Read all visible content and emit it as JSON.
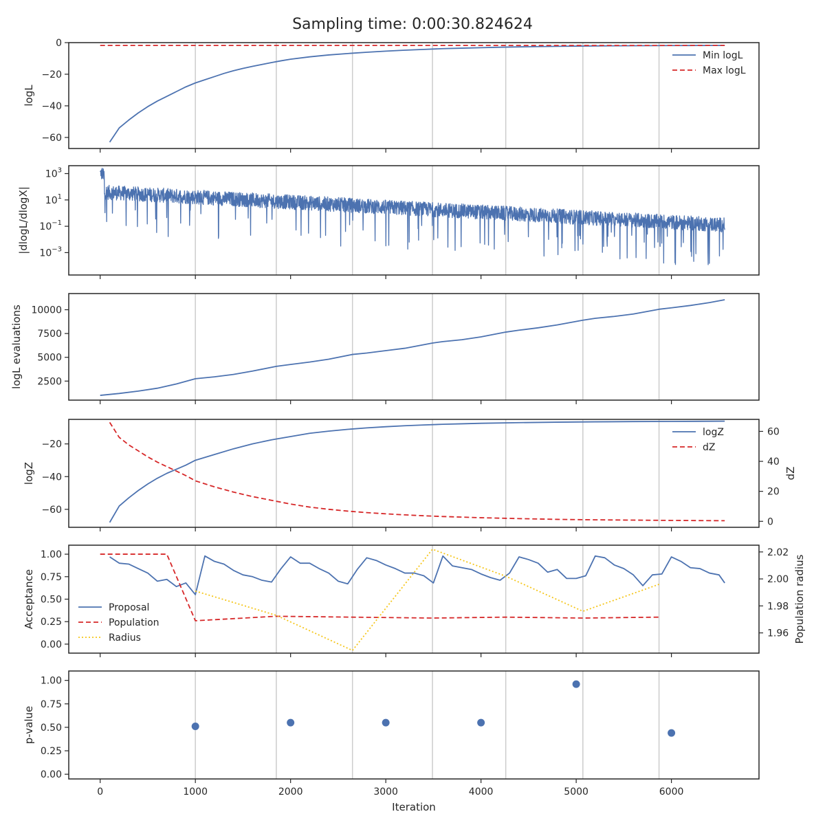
{
  "figure": {
    "title": "Sampling time: 0:00:30.824624",
    "xlabel": "Iteration",
    "vlines": [
      1000,
      1850,
      2650,
      3490,
      4260,
      5070,
      5870
    ],
    "xlim": [
      -330,
      6920
    ],
    "xticks": [
      0,
      1000,
      2000,
      3000,
      4000,
      5000,
      6000
    ]
  },
  "colors": {
    "blue": "#4c72b0",
    "red": "#d62728",
    "gold": "#f5c518",
    "grid": "#cccccc",
    "frame": "#262626"
  },
  "chart_data": [
    {
      "type": "line",
      "panel": "logL",
      "ylabel": "logL",
      "ylim": [
        -67,
        0
      ],
      "yticks": [
        0,
        -20,
        -40,
        -60
      ],
      "legend": "top-right",
      "series": [
        {
          "name": "Min logL",
          "style": "solid",
          "color": "#4c72b0",
          "x": [
            100,
            200,
            300,
            400,
            500,
            600,
            700,
            800,
            900,
            1000,
            1100,
            1200,
            1300,
            1400,
            1500,
            1600,
            1700,
            1800,
            1900,
            2000,
            2200,
            2400,
            2600,
            2800,
            3000,
            3200,
            3400,
            3600,
            3800,
            4000,
            4200,
            4400,
            4600,
            4800,
            5000,
            5200,
            5400,
            5600,
            5800,
            6000,
            6200,
            6400,
            6560
          ],
          "y": [
            -63,
            -54,
            -49,
            -44.5,
            -40.5,
            -37,
            -34,
            -31,
            -28,
            -25.5,
            -23.5,
            -21.5,
            -19.5,
            -17.8,
            -16.3,
            -15.0,
            -13.8,
            -12.6,
            -11.5,
            -10.5,
            -9.0,
            -7.8,
            -6.9,
            -6.1,
            -5.4,
            -4.8,
            -4.3,
            -3.8,
            -3.5,
            -3.2,
            -2.9,
            -2.7,
            -2.5,
            -2.35,
            -2.2,
            -2.1,
            -2.0,
            -1.95,
            -1.9,
            -1.85,
            -1.82,
            -1.8,
            -1.78
          ]
        },
        {
          "name": "Max logL",
          "style": "dashed",
          "color": "#d62728",
          "x": [
            0,
            6560
          ],
          "y": [
            -1.8,
            -1.8
          ]
        }
      ]
    },
    {
      "type": "line",
      "panel": "dlogL",
      "ylabel": "|dlogL/dlogX|",
      "yscale": "log",
      "ylim": [
        -4.7,
        3.6
      ],
      "yticks_exp": [
        3,
        1,
        -1,
        -3
      ],
      "series": [
        {
          "name": "",
          "style": "solid",
          "color": "#4c72b0",
          "x": [
            0,
            6560
          ],
          "trend_log10": [
            1.6,
            -0.9
          ],
          "spread_log10": 0.55,
          "n": 2600
        }
      ]
    },
    {
      "type": "line",
      "panel": "evaluations",
      "ylabel": "logL evaluations",
      "ylim": [
        500,
        11700
      ],
      "yticks": [
        2500,
        5000,
        7500,
        10000
      ],
      "series": [
        {
          "name": "",
          "style": "solid",
          "color": "#4c72b0",
          "x": [
            0,
            200,
            400,
            600,
            800,
            1000,
            1200,
            1400,
            1600,
            1850,
            2000,
            2200,
            2400,
            2650,
            2800,
            3000,
            3200,
            3490,
            3600,
            3800,
            4000,
            4260,
            4400,
            4600,
            4800,
            5070,
            5200,
            5400,
            5600,
            5870,
            6000,
            6200,
            6400,
            6560
          ],
          "y": [
            1000,
            1200,
            1450,
            1750,
            2200,
            2750,
            2950,
            3200,
            3550,
            4050,
            4250,
            4500,
            4800,
            5300,
            5450,
            5700,
            5950,
            6500,
            6650,
            6850,
            7150,
            7650,
            7850,
            8100,
            8400,
            8900,
            9100,
            9300,
            9550,
            10050,
            10200,
            10450,
            10750,
            11050
          ]
        }
      ]
    },
    {
      "type": "line",
      "panel": "logZ",
      "ylabel": "logZ",
      "ylim": [
        -71,
        -5
      ],
      "yticks": [
        -20,
        -40,
        -60
      ],
      "y2label": "dZ",
      "y2lim": [
        -4,
        68
      ],
      "y2ticks": [
        0,
        20,
        40,
        60
      ],
      "legend": "top-right",
      "series": [
        {
          "name": "logZ",
          "style": "solid",
          "color": "#4c72b0",
          "axis": "left",
          "x": [
            100,
            200,
            300,
            400,
            500,
            600,
            700,
            800,
            900,
            1000,
            1200,
            1400,
            1600,
            1800,
            2000,
            2200,
            2400,
            2600,
            2800,
            3000,
            3200,
            3400,
            3600,
            3800,
            4000,
            4400,
            4800,
            5200,
            5600,
            6000,
            6560
          ],
          "y": [
            -68,
            -58,
            -53,
            -48.5,
            -44.5,
            -41,
            -38,
            -35.5,
            -33,
            -30,
            -26.5,
            -23,
            -20,
            -17.5,
            -15.5,
            -13.5,
            -12.2,
            -11.1,
            -10.2,
            -9.5,
            -8.9,
            -8.4,
            -8.0,
            -7.7,
            -7.4,
            -7.0,
            -6.7,
            -6.5,
            -6.35,
            -6.25,
            -6.1
          ]
        },
        {
          "name": "dZ",
          "style": "dashed",
          "color": "#d62728",
          "axis": "right",
          "x": [
            100,
            200,
            300,
            400,
            500,
            600,
            700,
            800,
            900,
            1000,
            1200,
            1400,
            1600,
            1800,
            2000,
            2200,
            2400,
            2600,
            2800,
            3000,
            3200,
            3400,
            3600,
            3800,
            4000,
            4400,
            4800,
            5200,
            5600,
            6000,
            6560
          ],
          "y": [
            66,
            56,
            51,
            47,
            43,
            39.5,
            36.5,
            33.5,
            30.5,
            27,
            23,
            19.5,
            16.5,
            14,
            11.5,
            9.5,
            8,
            6.8,
            5.8,
            5,
            4.3,
            3.7,
            3.2,
            2.8,
            2.4,
            1.8,
            1.3,
            1.0,
            0.8,
            0.6,
            0.4
          ]
        }
      ]
    },
    {
      "type": "line",
      "panel": "acceptance",
      "ylabel": "Acceptance",
      "ylim": [
        -0.1,
        1.1
      ],
      "yticks": [
        0.0,
        0.25,
        0.5,
        0.75,
        1.0
      ],
      "y2label": "Population radius",
      "y2lim": [
        1.945,
        2.025
      ],
      "y2ticks": [
        1.96,
        1.98,
        2.0,
        2.02
      ],
      "legend": "bottom-left",
      "series": [
        {
          "name": "Proposal",
          "style": "solid",
          "color": "#4c72b0",
          "axis": "left",
          "x": [
            100,
            200,
            300,
            400,
            500,
            600,
            700,
            800,
            900,
            1000,
            1100,
            1200,
            1300,
            1400,
            1500,
            1600,
            1700,
            1800,
            1900,
            2000,
            2100,
            2200,
            2300,
            2400,
            2500,
            2600,
            2700,
            2800,
            2900,
            3000,
            3100,
            3200,
            3300,
            3400,
            3500,
            3600,
            3700,
            3800,
            3900,
            4000,
            4100,
            4200,
            4300,
            4400,
            4500,
            4600,
            4700,
            4800,
            4900,
            5000,
            5100,
            5200,
            5300,
            5400,
            5500,
            5600,
            5700,
            5800,
            5900,
            6000,
            6100,
            6200,
            6300,
            6400,
            6500,
            6560
          ],
          "y": [
            0.97,
            0.9,
            0.89,
            0.84,
            0.79,
            0.7,
            0.72,
            0.64,
            0.68,
            0.55,
            0.98,
            0.92,
            0.89,
            0.82,
            0.77,
            0.75,
            0.71,
            0.69,
            0.84,
            0.97,
            0.9,
            0.9,
            0.84,
            0.79,
            0.7,
            0.67,
            0.83,
            0.96,
            0.93,
            0.88,
            0.84,
            0.79,
            0.79,
            0.76,
            0.68,
            0.98,
            0.87,
            0.85,
            0.83,
            0.78,
            0.74,
            0.71,
            0.79,
            0.97,
            0.94,
            0.9,
            0.8,
            0.83,
            0.73,
            0.73,
            0.76,
            0.98,
            0.96,
            0.88,
            0.84,
            0.77,
            0.65,
            0.77,
            0.78,
            0.97,
            0.92,
            0.85,
            0.84,
            0.79,
            0.77,
            0.68
          ]
        },
        {
          "name": "Population",
          "style": "dashed",
          "color": "#d62728",
          "axis": "left",
          "x": [
            0,
            700,
            1000,
            1850,
            2650,
            3490,
            4260,
            5070,
            5870
          ],
          "y": [
            1.0,
            1.0,
            0.26,
            0.31,
            0.3,
            0.29,
            0.3,
            0.29,
            0.3
          ]
        },
        {
          "name": "Radius",
          "style": "dotted",
          "color": "#f5c518",
          "axis": "right",
          "x": [
            1000,
            1850,
            2650,
            3490,
            4260,
            5070,
            5870
          ],
          "y": [
            1.991,
            1.973,
            1.947,
            2.022,
            2.002,
            1.976,
            1.996
          ]
        }
      ]
    },
    {
      "type": "scatter",
      "panel": "pvalue",
      "ylabel": "p-value",
      "ylim": [
        -0.05,
        1.1
      ],
      "yticks": [
        0.0,
        0.25,
        0.5,
        0.75,
        1.0
      ],
      "series": [
        {
          "name": "",
          "color": "#4c72b0",
          "x": [
            1000,
            2000,
            3000,
            4000,
            5000,
            6000
          ],
          "y": [
            0.51,
            0.55,
            0.55,
            0.55,
            0.96,
            0.44
          ]
        }
      ]
    }
  ]
}
